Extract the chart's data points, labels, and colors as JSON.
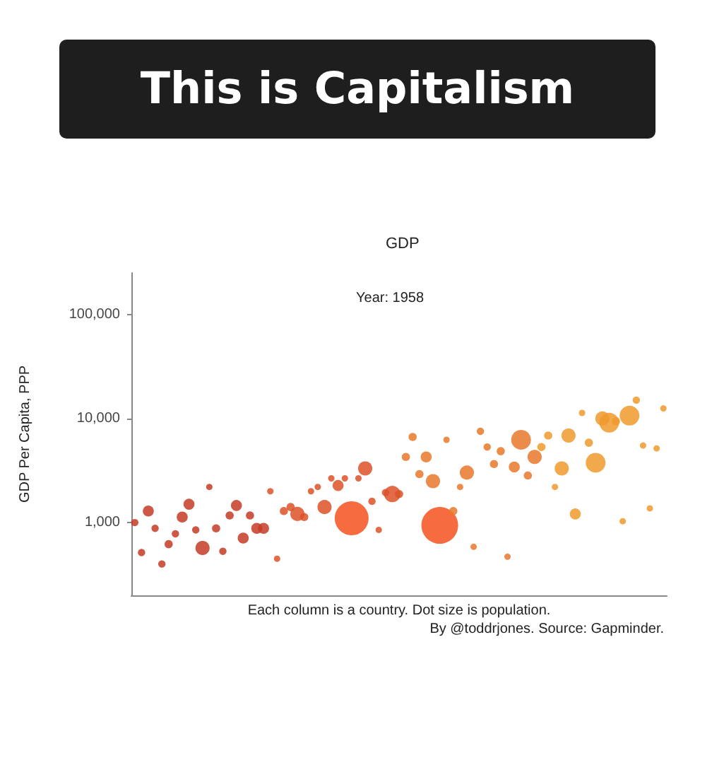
{
  "chart_data": {
    "type": "bubble",
    "title": "This is Capitalism",
    "subtitle": "GDP",
    "xlabel": "Each column is a country. Dot size is population.",
    "ylabel": "GDP Per Capita, PPP",
    "annotations": [
      "Year: 1958",
      "By @toddrjones. Source: Gapminder."
    ],
    "categories": [
      null,
      null,
      null,
      null,
      null,
      null,
      null,
      null,
      null,
      null,
      null,
      null,
      null,
      null,
      null,
      null,
      null,
      null,
      null,
      null,
      null,
      null,
      null,
      null,
      null,
      null,
      null,
      null,
      null,
      null,
      null,
      null,
      null,
      null,
      null,
      null,
      null,
      null,
      null,
      null,
      null,
      null,
      null,
      null,
      null,
      null,
      null,
      null,
      null,
      null,
      null,
      null,
      null,
      null,
      null,
      null,
      null,
      null,
      null,
      null,
      null,
      null,
      null,
      null,
      null,
      null,
      null,
      null,
      null,
      null,
      null,
      null,
      null,
      null,
      null,
      null,
      null,
      null,
      null
    ],
    "values": [
      1000,
      515,
      1290,
      880,
      400,
      620,
      780,
      1130,
      1500,
      850,
      570,
      2200,
      880,
      530,
      1170,
      1460,
      710,
      1170,
      880,
      880,
      2000,
      450,
      1290,
      1410,
      1210,
      1130,
      2000,
      2200,
      1410,
      2660,
      2270,
      2660,
      1100,
      2660,
      3310,
      1600,
      850,
      1940,
      1880,
      1880,
      4270,
      6640,
      2920,
      4270,
      2500,
      940,
      6240,
      1290,
      2200,
      3020,
      585,
      7530,
      5320,
      3650,
      4850,
      470,
      3420,
      6240,
      2830,
      4270,
      5320,
      6850,
      2200,
      3310,
      6850,
      1210,
      11300,
      5850,
      3760,
      9990,
      9100,
      9400,
      1030,
      10650,
      15000,
      5500,
      1370,
      5160,
      12500
    ],
    "sizes": [
      0.04,
      0.04,
      0.09,
      0.04,
      0.04,
      0.05,
      0.04,
      0.09,
      0.09,
      0.04,
      0.15,
      0.03,
      0.05,
      0.04,
      0.05,
      0.09,
      0.09,
      0.05,
      0.09,
      0.09,
      0.03,
      0.03,
      0.05,
      0.05,
      0.15,
      0.05,
      0.03,
      0.03,
      0.15,
      0.03,
      0.09,
      0.03,
      0.85,
      0.03,
      0.15,
      0.04,
      0.03,
      0.04,
      0.2,
      0.05,
      0.05,
      0.05,
      0.05,
      0.09,
      0.15,
      1,
      0.03,
      0.05,
      0.03,
      0.15,
      0.03,
      0.04,
      0.04,
      0.05,
      0.05,
      0.03,
      0.09,
      0.29,
      0.05,
      0.15,
      0.05,
      0.05,
      0.03,
      0.15,
      0.15,
      0.09,
      0.03,
      0.05,
      0.29,
      0.15,
      0.29,
      0.05,
      0.03,
      0.29,
      0.04,
      0.03,
      0.03,
      0.03,
      0.03
    ],
    "colors": [
      "#c63b26",
      "#c63b26",
      "#c63b26",
      "#c63b26",
      "#c63b26",
      "#c63b26",
      "#c63b26",
      "#c63b26",
      "#c63b26",
      "#c63b26",
      "#c63b26",
      "#c63b26",
      "#c63b26",
      "#c63b26",
      "#c63b26",
      "#c63b26",
      "#c63b26",
      "#c63b26",
      "#c63b26",
      "#c63b26",
      "#dd5128",
      "#dd5128",
      "#dd5128",
      "#dd5128",
      "#dd5128",
      "#dd5128",
      "#dd5128",
      "#dd5128",
      "#dd5128",
      "#dd5128",
      "#dd5128",
      "#dd5128",
      "#f4511e",
      "#dd5128",
      "#dd5128",
      "#dd5128",
      "#dd5128",
      "#dd5128",
      "#dd5128",
      "#dd5128",
      "#e9782a",
      "#e9782a",
      "#e9782a",
      "#e9782a",
      "#e9782a",
      "#f4511e",
      "#e9782a",
      "#e9782a",
      "#e9782a",
      "#e9782a",
      "#e9782a",
      "#e9782a",
      "#e9782a",
      "#e9782a",
      "#e9782a",
      "#e9782a",
      "#e9782a",
      "#e9782a",
      "#e9782a",
      "#e9782a",
      "#f09a2c",
      "#f09a2c",
      "#f09a2c",
      "#f09a2c",
      "#f09a2c",
      "#f09a2c",
      "#f09a2c",
      "#f09a2c",
      "#f09a2c",
      "#f09a2c",
      "#f09a2c",
      "#f09a2c",
      "#f09a2c",
      "#f09a2c",
      "#f09a2c",
      "#f09a2c",
      "#f09a2c",
      "#f09a2c",
      "#f09a2c"
    ],
    "log": true,
    "ylim": [
      200,
      250000
    ],
    "yticks": [
      {
        "value": 1000,
        "label": "1,000"
      },
      {
        "value": 10000,
        "label": "10,000"
      },
      {
        "value": 100000,
        "label": "100,000"
      }
    ],
    "grid": false
  }
}
